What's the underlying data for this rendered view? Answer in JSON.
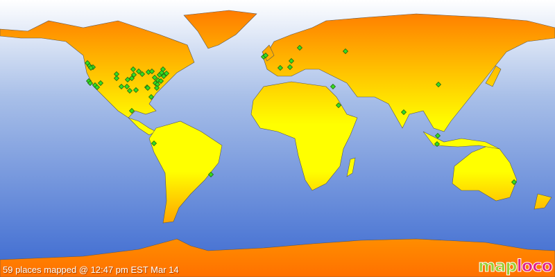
{
  "caption": "59 places mapped @ 12:47 pm EST Mar 14",
  "logo": {
    "part1": "map",
    "part2": "loco"
  },
  "colors": {
    "ocean_top": "#ffffff",
    "ocean_bottom": "#3a68d0",
    "land_top": "#ff7a00",
    "land_mid": "#ffff00",
    "marker": "#33dd22"
  },
  "markers": {
    "count": 59,
    "icon": "green-diamond"
  }
}
